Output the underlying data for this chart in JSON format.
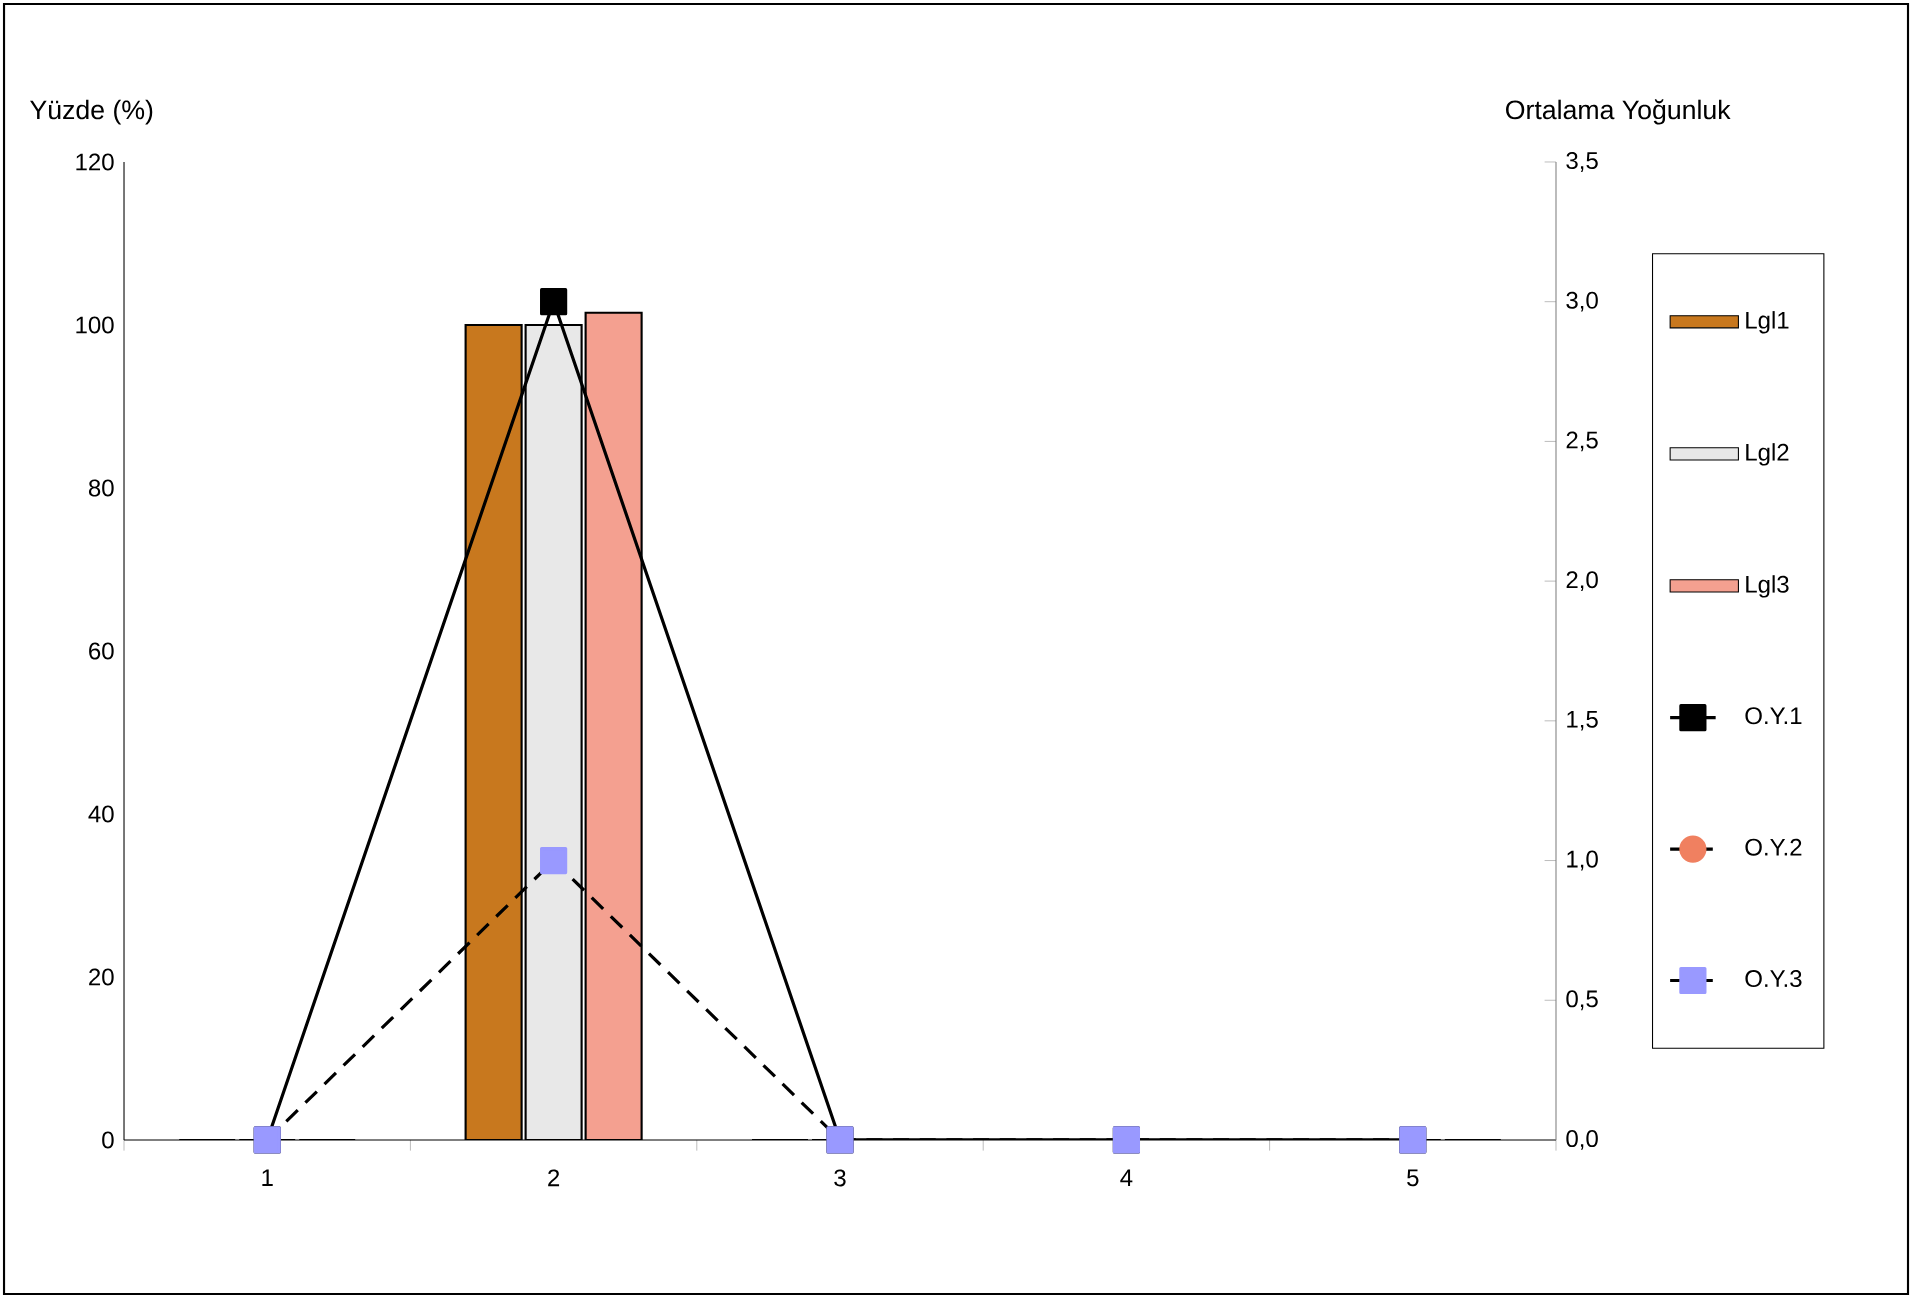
{
  "chart_data": {
    "type": "bar",
    "categories": [
      "1",
      "2",
      "3",
      "4",
      "5"
    ],
    "ylabel": "Yüzde (%)",
    "y2label": "Ortalama Yoğunluk",
    "ylim": [
      0,
      120
    ],
    "yticks": [
      0,
      20,
      40,
      60,
      80,
      100,
      120
    ],
    "y2lim": [
      0,
      3.5
    ],
    "y2ticks": [
      {
        "value": 0,
        "label": "0,0"
      },
      {
        "value": 0.5,
        "label": "0,5"
      },
      {
        "value": 1,
        "label": "1,0"
      },
      {
        "value": 1.5,
        "label": "1,5"
      },
      {
        "value": 2,
        "label": "2,0"
      },
      {
        "value": 2.5,
        "label": "2,5"
      },
      {
        "value": 3,
        "label": "3,0"
      },
      {
        "value": 3.5,
        "label": "3,5"
      }
    ],
    "legend": "right",
    "grid": false,
    "series": [
      {
        "name": "Lgl1",
        "color": "#c8781e",
        "values": [
          0,
          100,
          0,
          0,
          0
        ]
      },
      {
        "name": "Lgl2",
        "color": "#e8e8e8",
        "values": [
          0,
          100,
          0,
          0,
          0
        ]
      },
      {
        "name": "Lgl3",
        "color": "#f4a090",
        "values": [
          0,
          101.5,
          0,
          0,
          0
        ]
      },
      {
        "name": "O.Y.1",
        "type": "line",
        "axis": "y2",
        "color": "#000000",
        "marker": "square",
        "line_style": "solid",
        "values": [
          0,
          3.0,
          0,
          0,
          0
        ]
      },
      {
        "name": "O.Y.2",
        "type": "line",
        "axis": "y2",
        "color": "#f08060",
        "marker": "circle",
        "line_style": "dashed",
        "values": [
          null,
          null,
          null,
          null,
          null
        ]
      },
      {
        "name": "O.Y.3",
        "type": "line",
        "axis": "y2",
        "color": "#9999ff",
        "marker": "square",
        "line_style": "dashed",
        "values": [
          0,
          1.0,
          0,
          0,
          0
        ]
      }
    ]
  }
}
